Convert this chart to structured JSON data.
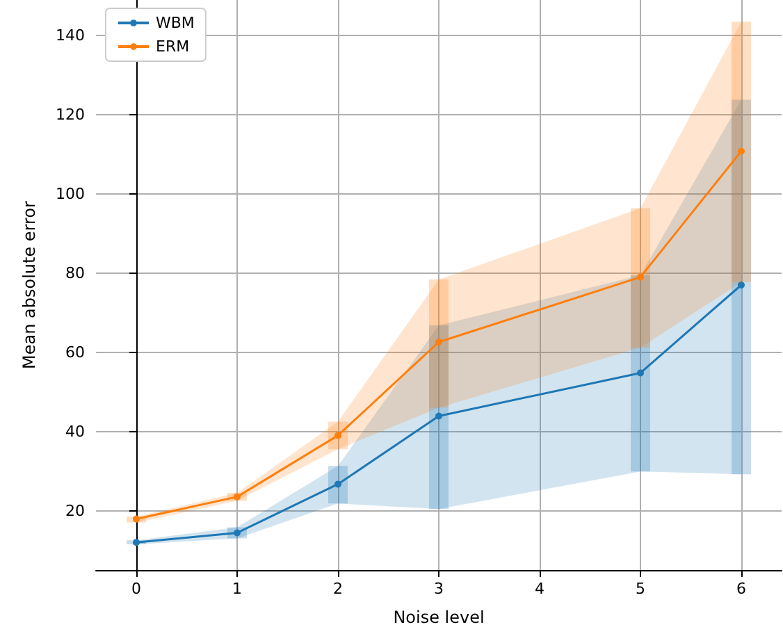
{
  "chart_data": {
    "type": "line",
    "xlabel": "Noise level",
    "ylabel": "Mean absolute error",
    "x": [
      0,
      1,
      2,
      3,
      5,
      6
    ],
    "series": [
      {
        "name": "WBM",
        "color": "#1f77b4",
        "values": [
          12,
          14.4,
          26.7,
          43.9,
          54.8,
          77
        ],
        "errors": [
          [
            11.5,
            12.5
          ],
          [
            13,
            15.8
          ],
          [
            21.8,
            31.3
          ],
          [
            20.4,
            66.8
          ],
          [
            29.9,
            79.5
          ],
          [
            29.2,
            123.8
          ]
        ],
        "lower": [
          11.5,
          13,
          21.8,
          20.4,
          29.9,
          29.2
        ],
        "upper": [
          12.5,
          15.8,
          31.3,
          66.8,
          79.5,
          123.8
        ]
      },
      {
        "name": "ERM",
        "color": "#ff7f0e",
        "values": [
          17.9,
          23.5,
          39,
          62.6,
          79,
          110.8
        ],
        "errors": [
          [
            17,
            18.5
          ],
          [
            22.5,
            24.5
          ],
          [
            35.5,
            42.5
          ],
          [
            46,
            78.4
          ],
          [
            61.2,
            96.4
          ],
          [
            77.7,
            143.5
          ]
        ],
        "lower": [
          17,
          22.5,
          35.5,
          46,
          61.2,
          77.7
        ],
        "upper": [
          18.5,
          24.5,
          42.5,
          78.4,
          96.4,
          143.5
        ]
      }
    ],
    "xlim": [
      -0.4,
      6.4
    ],
    "xticks": [
      0,
      1,
      2,
      3,
      4,
      5,
      6
    ],
    "ylim": [
      5,
      149
    ],
    "yticks": [
      20,
      40,
      60,
      80,
      100,
      120,
      140
    ],
    "grid": true,
    "legend": "top left",
    "marker": "circle",
    "line_style": "solid"
  }
}
